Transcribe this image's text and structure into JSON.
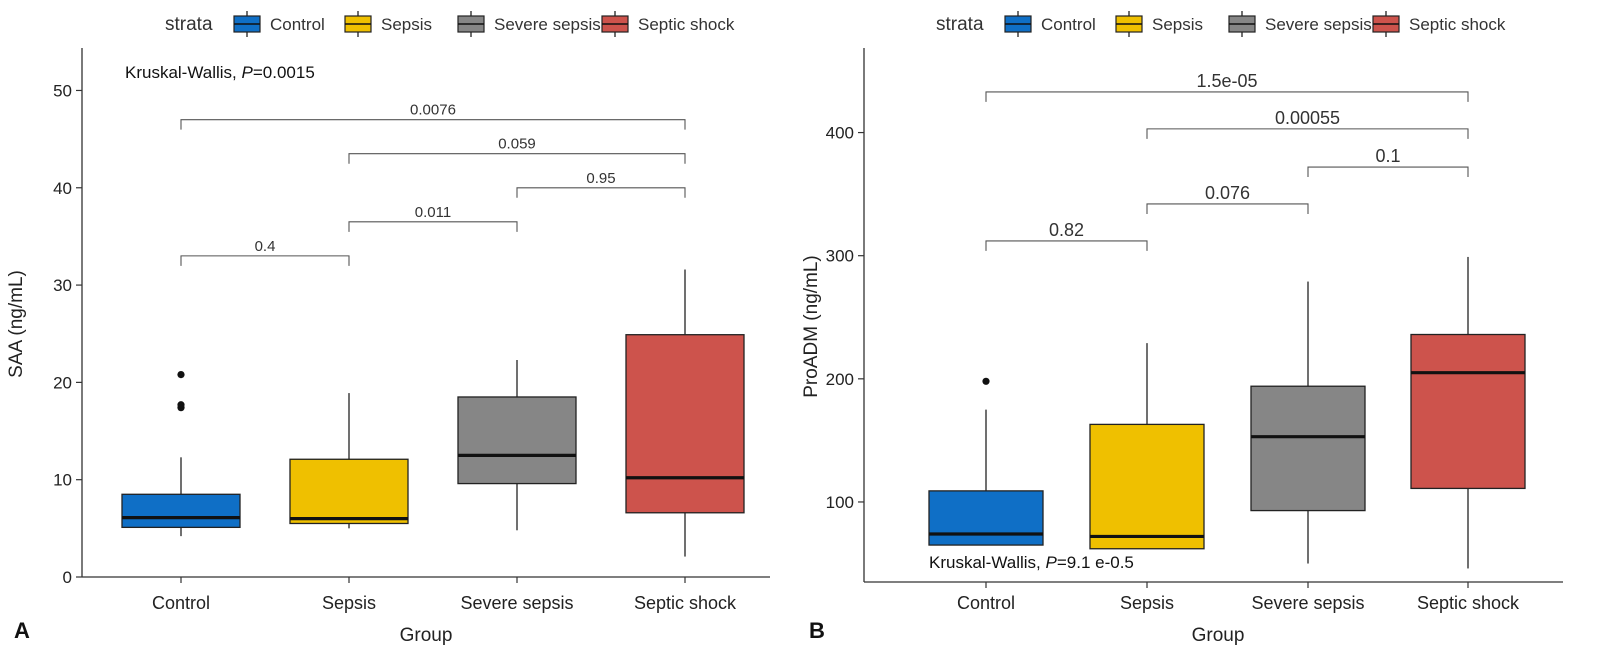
{
  "legend": {
    "title": "strata",
    "items": [
      {
        "label": "Control",
        "color": "#0f6fc6"
      },
      {
        "label": "Sepsis",
        "color": "#efc000"
      },
      {
        "label": "Severe sepsis",
        "color": "#868686"
      },
      {
        "label": "Septic shock",
        "color": "#cd534c"
      }
    ]
  },
  "chart_data": [
    {
      "type": "box",
      "panel_label": "A",
      "categories": [
        "Control",
        "Sepsis",
        "Severe sepsis",
        "Septic shock"
      ],
      "xlabel": "Group",
      "ylabel": "SAA (ng/mL)",
      "ylim": [
        0,
        52
      ],
      "yticks": [
        0,
        10,
        20,
        30,
        40,
        50
      ],
      "boxes": [
        {
          "group": "Control",
          "low": 4.2,
          "q1": 5.1,
          "median": 6.1,
          "q3": 8.5,
          "high": 12.3,
          "outliers": [
            17.4,
            17.7,
            20.8
          ]
        },
        {
          "group": "Sepsis",
          "low": 5.0,
          "q1": 5.5,
          "median": 6.0,
          "q3": 12.1,
          "high": 18.9,
          "outliers": []
        },
        {
          "group": "Severe sepsis",
          "low": 4.8,
          "q1": 9.6,
          "median": 12.5,
          "q3": 18.5,
          "high": 22.3,
          "outliers": []
        },
        {
          "group": "Septic shock",
          "low": 2.1,
          "q1": 6.6,
          "median": 10.2,
          "q3": 24.9,
          "high": 31.6,
          "outliers": []
        }
      ],
      "kruskal": {
        "prefix": "Kruskal-Wallis, ",
        "p_symbol": "P",
        "value": "=0.0015"
      },
      "comparisons": [
        {
          "from": "Control",
          "to": "Sepsis",
          "y": 33.0,
          "label": "0.4"
        },
        {
          "from": "Sepsis",
          "to": "Severe sepsis",
          "y": 36.5,
          "label": "0.011"
        },
        {
          "from": "Severe sepsis",
          "to": "Septic shock",
          "y": 40.0,
          "label": "0.95"
        },
        {
          "from": "Sepsis",
          "to": "Septic shock",
          "y": 43.5,
          "label": "0.059"
        },
        {
          "from": "Control",
          "to": "Septic shock",
          "y": 47.0,
          "label": "0.0076"
        }
      ]
    },
    {
      "type": "box",
      "panel_label": "B",
      "categories": [
        "Control",
        "Sepsis",
        "Severe sepsis",
        "Septic shock"
      ],
      "xlabel": "Group",
      "ylabel": "ProADM (ng/mL)",
      "ylim": [
        35,
        450
      ],
      "yticks": [
        100,
        200,
        300,
        400
      ],
      "boxes": [
        {
          "group": "Control",
          "low": 65,
          "q1": 65,
          "median": 74,
          "q3": 109,
          "high": 175,
          "outliers": [
            198
          ]
        },
        {
          "group": "Sepsis",
          "low": 62,
          "q1": 62,
          "median": 72,
          "q3": 163,
          "high": 229,
          "outliers": []
        },
        {
          "group": "Severe sepsis",
          "low": 50,
          "q1": 93,
          "median": 153,
          "q3": 194,
          "high": 279,
          "outliers": []
        },
        {
          "group": "Septic shock",
          "low": 46,
          "q1": 111,
          "median": 205,
          "q3": 236,
          "high": 299,
          "outliers": []
        }
      ],
      "kruskal": {
        "prefix": "Kruskal-Wallis, ",
        "p_symbol": "P",
        "value": "=9.1 e-0.5"
      },
      "comparisons": [
        {
          "from": "Control",
          "to": "Sepsis",
          "y": 312,
          "label": "0.82"
        },
        {
          "from": "Sepsis",
          "to": "Severe sepsis",
          "y": 342,
          "label": "0.076"
        },
        {
          "from": "Severe sepsis",
          "to": "Septic shock",
          "y": 372,
          "label": "0.1"
        },
        {
          "from": "Sepsis",
          "to": "Septic shock",
          "y": 403,
          "label": "0.00055"
        },
        {
          "from": "Control",
          "to": "Septic shock",
          "y": 433,
          "label": "1.5e-05"
        }
      ]
    }
  ]
}
